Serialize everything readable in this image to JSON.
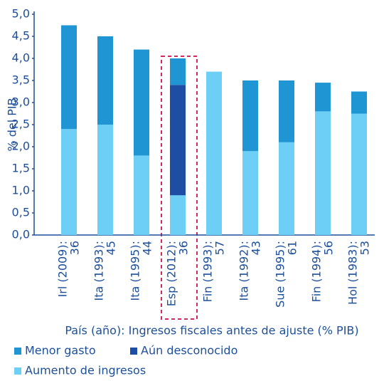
{
  "chart_data": {
    "type": "stacked_bar",
    "x_label": "País (año): Ingresos fiscales antes de ajuste (% PIB)",
    "y_label": "% del PIB",
    "categories": [
      [
        "Irl (2009):",
        "36"
      ],
      [
        "Ita (1993):",
        "45"
      ],
      [
        "Ita (1995):",
        "44"
      ],
      [
        "Esp (2012):",
        "36"
      ],
      [
        "Fin (1993):",
        "57"
      ],
      [
        "Ita (1992):",
        "43"
      ],
      [
        "Sue (1995):",
        "61"
      ],
      [
        "Fin (1994):",
        "56"
      ],
      [
        "Hol (1983):",
        "53"
      ]
    ],
    "series": [
      {
        "name": "Aumento de ingresos",
        "color": "#6dcff6",
        "values": [
          2.4,
          2.5,
          1.8,
          0.9,
          3.7,
          1.9,
          2.1,
          2.8,
          2.75
        ]
      },
      {
        "name": "Aún desconocido",
        "color": "#1d4ea3",
        "values": [
          0,
          0,
          0,
          2.5,
          0,
          0,
          0,
          0,
          0
        ]
      },
      {
        "name": "Menor gasto",
        "color": "#1f95d3",
        "values": [
          2.35,
          2.0,
          2.4,
          0.6,
          0,
          1.6,
          1.4,
          0.65,
          0.5
        ]
      }
    ],
    "legend_order": [
      "Menor gasto",
      "Aún desconocido",
      "Aumento de ingresos"
    ],
    "ylim": [
      0,
      5
    ],
    "yticks": [
      {
        "value": 0,
        "label": "0,0"
      },
      {
        "value": 0.5,
        "label": "0,5"
      },
      {
        "value": 1,
        "label": "1,0"
      },
      {
        "value": 1.5,
        "label": "1,5"
      },
      {
        "value": 2,
        "label": "2,0"
      },
      {
        "value": 2.5,
        "label": "2,5"
      },
      {
        "value": 3,
        "label": "3,0"
      },
      {
        "value": 3.5,
        "label": "3,5"
      },
      {
        "value": 4,
        "label": "4,0"
      },
      {
        "value": 4.5,
        "label": "4,5"
      },
      {
        "value": 5,
        "label": "5,0"
      }
    ],
    "grid": false
  }
}
